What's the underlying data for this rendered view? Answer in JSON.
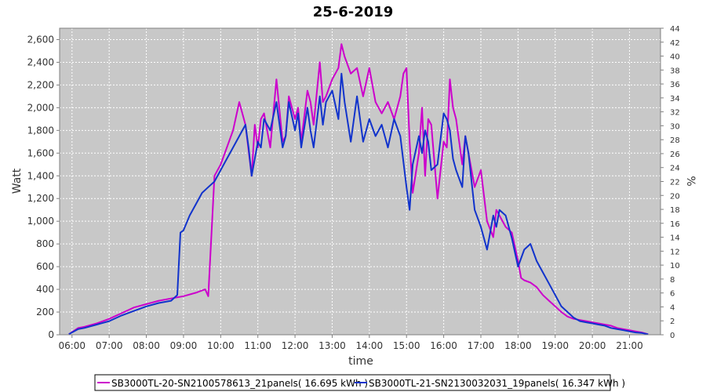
{
  "chart_data": {
    "type": "line",
    "title": "25-6-2019",
    "xlabel": "time",
    "ylabel": "Watt",
    "y2label": "%",
    "xlim": [
      "05:40",
      "21:50"
    ],
    "ylim": [
      0,
      2700
    ],
    "y2lim": [
      0,
      44
    ],
    "x_ticks": [
      "06:00",
      "07:00",
      "08:00",
      "09:00",
      "10:00",
      "11:00",
      "12:00",
      "13:00",
      "14:00",
      "15:00",
      "16:00",
      "17:00",
      "18:00",
      "19:00",
      "20:00",
      "21:00"
    ],
    "y_ticks": [
      "0",
      "200",
      "400",
      "600",
      "800",
      "1,000",
      "1,200",
      "1,400",
      "1,600",
      "1,800",
      "2,000",
      "2,200",
      "2,400",
      "2,600"
    ],
    "y_tick_values": [
      0,
      200,
      400,
      600,
      800,
      1000,
      1200,
      1400,
      1600,
      1800,
      2000,
      2200,
      2400,
      2600
    ],
    "y2_ticks": [
      "0",
      "2",
      "4",
      "6",
      "8",
      "10",
      "12",
      "14",
      "16",
      "18",
      "20",
      "22",
      "24",
      "26",
      "28",
      "30",
      "32",
      "34",
      "36",
      "38",
      "40",
      "42",
      "44"
    ],
    "y2_tick_values": [
      0,
      2,
      4,
      6,
      8,
      10,
      12,
      14,
      16,
      18,
      20,
      22,
      24,
      26,
      28,
      30,
      32,
      34,
      36,
      38,
      40,
      42,
      44
    ],
    "grid": true,
    "legend_position": "bottom",
    "series": [
      {
        "name": "SB3000TL-20-SN2100578613_21panels( 16.695 kWh )",
        "color": "#cc00cc",
        "x": [
          "05:55",
          "06:10",
          "06:20",
          "06:40",
          "07:00",
          "07:20",
          "07:40",
          "08:00",
          "08:20",
          "08:40",
          "09:00",
          "09:20",
          "09:35",
          "09:40",
          "09:50",
          "10:00",
          "10:10",
          "10:20",
          "10:30",
          "10:40",
          "10:50",
          "10:55",
          "11:00",
          "11:05",
          "11:10",
          "11:20",
          "11:30",
          "11:40",
          "11:45",
          "11:50",
          "12:00",
          "12:05",
          "12:10",
          "12:20",
          "12:25",
          "12:30",
          "12:40",
          "12:45",
          "12:50",
          "13:00",
          "13:10",
          "13:15",
          "13:20",
          "13:30",
          "13:40",
          "13:50",
          "14:00",
          "14:10",
          "14:20",
          "14:30",
          "14:40",
          "14:50",
          "14:55",
          "15:00",
          "15:05",
          "15:10",
          "15:20",
          "15:25",
          "15:30",
          "15:35",
          "15:40",
          "15:50",
          "16:00",
          "16:05",
          "16:10",
          "16:15",
          "16:20",
          "16:30",
          "16:35",
          "16:40",
          "16:50",
          "17:00",
          "17:10",
          "17:20",
          "17:25",
          "17:30",
          "17:40",
          "17:50",
          "18:00",
          "18:05",
          "18:10",
          "18:20",
          "18:30",
          "18:40",
          "18:50",
          "19:00",
          "19:10",
          "19:20",
          "19:30",
          "19:40",
          "19:50",
          "20:00",
          "20:10",
          "20:20",
          "20:30",
          "20:40",
          "20:50",
          "21:00",
          "21:10",
          "21:20",
          "21:30"
        ],
        "y": [
          5,
          60,
          70,
          100,
          140,
          190,
          240,
          270,
          300,
          320,
          340,
          370,
          400,
          340,
          1400,
          1500,
          1650,
          1800,
          2050,
          1850,
          1400,
          1850,
          1650,
          1900,
          1950,
          1650,
          2250,
          1700,
          1750,
          2100,
          1900,
          2000,
          1700,
          2150,
          2050,
          1850,
          2400,
          2050,
          2100,
          2250,
          2350,
          2560,
          2450,
          2300,
          2350,
          2100,
          2350,
          2050,
          1950,
          2050,
          1900,
          2100,
          2300,
          2350,
          1700,
          1250,
          1600,
          2000,
          1400,
          1900,
          1850,
          1200,
          1700,
          1650,
          2250,
          2000,
          1900,
          1500,
          1750,
          1600,
          1300,
          1450,
          1000,
          860,
          1100,
          1050,
          950,
          900,
          650,
          500,
          480,
          460,
          420,
          350,
          300,
          250,
          200,
          160,
          140,
          130,
          120,
          110,
          100,
          90,
          80,
          60,
          50,
          40,
          30,
          20,
          5
        ]
      },
      {
        "name": "SB3000TL-21-SN2130032031_19panels( 16.347 kWh )",
        "color": "#1133cc",
        "x": [
          "05:55",
          "06:10",
          "06:20",
          "06:40",
          "07:00",
          "07:20",
          "07:40",
          "08:00",
          "08:20",
          "08:40",
          "08:50",
          "08:55",
          "09:00",
          "09:10",
          "09:20",
          "09:30",
          "09:40",
          "09:50",
          "10:00",
          "10:10",
          "10:20",
          "10:30",
          "10:40",
          "10:45",
          "10:50",
          "10:55",
          "11:00",
          "11:05",
          "11:10",
          "11:20",
          "11:30",
          "11:40",
          "11:45",
          "11:50",
          "12:00",
          "12:05",
          "12:10",
          "12:20",
          "12:25",
          "12:30",
          "12:40",
          "12:45",
          "12:50",
          "13:00",
          "13:10",
          "13:15",
          "13:20",
          "13:30",
          "13:40",
          "13:50",
          "14:00",
          "14:10",
          "14:20",
          "14:30",
          "14:40",
          "14:50",
          "15:00",
          "15:05",
          "15:10",
          "15:20",
          "15:25",
          "15:30",
          "15:35",
          "15:40",
          "15:50",
          "16:00",
          "16:05",
          "16:10",
          "16:15",
          "16:20",
          "16:30",
          "16:35",
          "16:40",
          "16:50",
          "17:00",
          "17:10",
          "17:20",
          "17:25",
          "17:30",
          "17:40",
          "17:50",
          "18:00",
          "18:10",
          "18:20",
          "18:30",
          "18:40",
          "18:50",
          "19:00",
          "19:10",
          "19:20",
          "19:30",
          "19:40",
          "19:50",
          "20:00",
          "20:10",
          "20:20",
          "20:30",
          "20:40",
          "20:50",
          "21:00",
          "21:10",
          "21:20",
          "21:30"
        ],
        "y": [
          5,
          50,
          60,
          90,
          120,
          170,
          210,
          250,
          280,
          300,
          350,
          900,
          920,
          1050,
          1150,
          1250,
          1300,
          1350,
          1450,
          1550,
          1650,
          1750,
          1850,
          1650,
          1400,
          1550,
          1700,
          1650,
          1900,
          1800,
          2050,
          1650,
          1750,
          2050,
          1800,
          1950,
          1650,
          2000,
          1800,
          1650,
          2100,
          1850,
          2050,
          2150,
          1900,
          2300,
          2050,
          1700,
          2100,
          1700,
          1900,
          1750,
          1850,
          1650,
          1900,
          1750,
          1300,
          1100,
          1500,
          1750,
          1600,
          1800,
          1700,
          1450,
          1500,
          1950,
          1900,
          1800,
          1550,
          1450,
          1300,
          1750,
          1600,
          1100,
          950,
          750,
          1050,
          950,
          1100,
          1050,
          850,
          600,
          750,
          800,
          650,
          550,
          450,
          350,
          250,
          200,
          150,
          120,
          110,
          100,
          90,
          80,
          60,
          50,
          40,
          30,
          20,
          15,
          5
        ]
      }
    ]
  }
}
